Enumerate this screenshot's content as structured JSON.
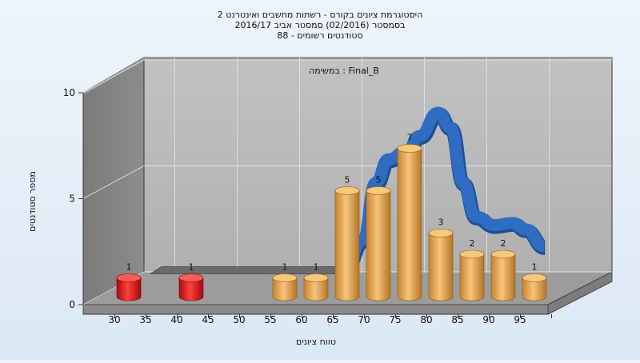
{
  "chart_data": {
    "type": "bar",
    "title_lines": [
      "היסטוגרמת ציונים בקורס - רשתות מחשבים ואינטרנט 2",
      "בסמסטר  (02/2016)  סמסטר אביב 2016/17",
      "סטודנטים רשומים - 88"
    ],
    "annotation": "במשימה : Final_B",
    "ylabel": "מספר סטודנטים",
    "xlabel": "טווח ציונים",
    "ylim": [
      0,
      10
    ],
    "yticks": [
      0,
      5,
      10
    ],
    "xticks": [
      30,
      35,
      40,
      45,
      50,
      55,
      60,
      65,
      70,
      75,
      80,
      85,
      90,
      95
    ],
    "grid": true,
    "bars": [
      {
        "x": 30,
        "value": 1,
        "color": "#e01818"
      },
      {
        "x": 40,
        "value": 1,
        "color": "#e01818"
      },
      {
        "x": 55,
        "value": 1,
        "color": "#f0a94a"
      },
      {
        "x": 60,
        "value": 1,
        "color": "#f0a94a"
      },
      {
        "x": 65,
        "value": 5,
        "color": "#f0a94a"
      },
      {
        "x": 70,
        "value": 5,
        "color": "#f0a94a"
      },
      {
        "x": 75,
        "value": 7,
        "color": "#f0a94a"
      },
      {
        "x": 80,
        "value": 3,
        "color": "#f0a94a"
      },
      {
        "x": 85,
        "value": 2,
        "color": "#f0a94a"
      },
      {
        "x": 90,
        "value": 2,
        "color": "#f0a94a"
      },
      {
        "x": 95,
        "value": 1,
        "color": "#f0a94a"
      }
    ],
    "curve": {
      "color": "#2f6cc2",
      "points": [
        [
          62,
          1.0
        ],
        [
          65,
          2.3
        ],
        [
          67,
          5.0
        ],
        [
          69,
          6.1
        ],
        [
          72,
          6.5
        ],
        [
          74,
          7.2
        ],
        [
          77,
          8.3
        ],
        [
          79,
          7.6
        ],
        [
          81,
          5.0
        ],
        [
          83,
          3.4
        ],
        [
          86,
          3.0
        ],
        [
          89,
          3.1
        ],
        [
          91,
          2.8
        ],
        [
          94,
          2.0
        ]
      ]
    },
    "ribbon": {
      "color": "#6b6b6b",
      "x_range": [
        30,
        62
      ],
      "value": 1.0
    }
  }
}
